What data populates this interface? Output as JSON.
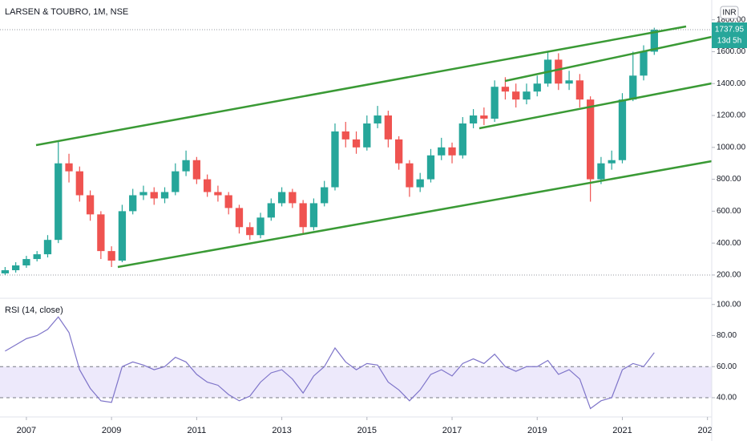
{
  "chart_data": [
    {
      "type": "candlestick",
      "title": "LARSEN & TOUBRO, 1M, NSE",
      "currency": "INR",
      "countdown": "13d 5h",
      "up_color": "#26a69a",
      "down_color": "#ef5350",
      "x": [
        2006.5,
        2006.75,
        2007,
        2007.25,
        2007.5,
        2007.75,
        2008,
        2008.25,
        2008.5,
        2008.75,
        2009,
        2009.25,
        2009.5,
        2009.75,
        2010,
        2010.25,
        2010.5,
        2010.75,
        2011,
        2011.25,
        2011.5,
        2011.75,
        2012,
        2012.25,
        2012.5,
        2012.75,
        2013,
        2013.25,
        2013.5,
        2013.75,
        2014,
        2014.25,
        2014.5,
        2014.75,
        2015,
        2015.25,
        2015.5,
        2015.75,
        2016,
        2016.25,
        2016.5,
        2016.75,
        2017,
        2017.25,
        2017.5,
        2017.75,
        2018,
        2018.25,
        2018.5,
        2018.75,
        2019,
        2019.25,
        2019.5,
        2019.75,
        2020,
        2020.25,
        2020.5,
        2020.75,
        2021,
        2021.25,
        2021.5,
        2021.75
      ],
      "open": [
        210,
        230,
        260,
        300,
        330,
        420,
        900,
        850,
        700,
        580,
        350,
        290,
        600,
        700,
        720,
        680,
        720,
        850,
        920,
        800,
        720,
        700,
        620,
        500,
        450,
        560,
        650,
        720,
        650,
        500,
        650,
        750,
        1100,
        1050,
        1000,
        1150,
        1200,
        1050,
        900,
        750,
        800,
        950,
        1000,
        950,
        1150,
        1200,
        1180,
        1380,
        1350,
        1300,
        1350,
        1400,
        1550,
        1400,
        1420,
        1300,
        800,
        900,
        920,
        1300,
        1450,
        1600
      ],
      "high": [
        250,
        280,
        320,
        350,
        450,
        1040,
        960,
        880,
        730,
        600,
        380,
        640,
        740,
        760,
        750,
        750,
        900,
        980,
        940,
        830,
        760,
        720,
        640,
        530,
        590,
        680,
        750,
        740,
        670,
        680,
        790,
        1150,
        1160,
        1100,
        1200,
        1260,
        1230,
        1070,
        920,
        840,
        990,
        1060,
        1030,
        1190,
        1240,
        1250,
        1420,
        1440,
        1400,
        1400,
        1450,
        1600,
        1590,
        1480,
        1460,
        1320,
        940,
        980,
        1340,
        1600,
        1640,
        1750
      ],
      "low": [
        200,
        215,
        245,
        285,
        310,
        400,
        780,
        660,
        540,
        300,
        250,
        280,
        580,
        670,
        640,
        650,
        700,
        820,
        770,
        690,
        660,
        580,
        460,
        420,
        430,
        540,
        630,
        620,
        460,
        480,
        630,
        730,
        1000,
        960,
        980,
        1120,
        1000,
        860,
        690,
        720,
        780,
        920,
        900,
        930,
        1120,
        1140,
        1160,
        1300,
        1250,
        1270,
        1320,
        1380,
        1360,
        1360,
        1250,
        660,
        770,
        860,
        900,
        1290,
        1420,
        1580
      ],
      "close": [
        230,
        260,
        300,
        330,
        420,
        900,
        850,
        700,
        580,
        350,
        290,
        600,
        700,
        720,
        680,
        720,
        850,
        920,
        800,
        720,
        700,
        620,
        500,
        450,
        560,
        650,
        720,
        650,
        500,
        650,
        750,
        1100,
        1050,
        1000,
        1150,
        1200,
        1050,
        900,
        750,
        800,
        950,
        1000,
        950,
        1150,
        1200,
        1180,
        1380,
        1350,
        1300,
        1350,
        1400,
        1550,
        1400,
        1420,
        1300,
        800,
        900,
        920,
        1300,
        1450,
        1600,
        1737.95
      ],
      "xlim": [
        2006.38,
        2023.1
      ],
      "xticks": [
        2007,
        2009,
        2011,
        2013,
        2015,
        2017,
        2019,
        2021,
        2023
      ],
      "ylim": [
        54,
        1924
      ],
      "yticks": [
        {
          "value": 200,
          "label": "200.00"
        },
        {
          "value": 400,
          "label": "400.00"
        },
        {
          "value": 600,
          "label": "600.00"
        },
        {
          "value": 800,
          "label": "800.00"
        },
        {
          "value": 1000,
          "label": "1000.00"
        },
        {
          "value": 1200,
          "label": "1200.00"
        },
        {
          "value": 1400,
          "label": "1400.00"
        },
        {
          "value": 1600,
          "label": "1600.00"
        },
        {
          "value": 1800,
          "label": "1800.00"
        }
      ]
    },
    {
      "type": "line",
      "title": "RSI (14, close)",
      "color": "#7e74c9",
      "band_color": "#ede9fb",
      "values": [
        70,
        74,
        78,
        80,
        84,
        92,
        82,
        58,
        46,
        38,
        37,
        60,
        63,
        61,
        58,
        60,
        66,
        63,
        55,
        50,
        48,
        42,
        38,
        41,
        50,
        56,
        58,
        52,
        43,
        54,
        60,
        72,
        63,
        58,
        62,
        61,
        50,
        45,
        38,
        45,
        55,
        58,
        54,
        62,
        65,
        62,
        68,
        60,
        57,
        60,
        60,
        64,
        55,
        58,
        52,
        33,
        38,
        40,
        58,
        62,
        60,
        69
      ],
      "ylim": [
        27.6,
        104
      ],
      "yticks": [
        {
          "value": 40,
          "label": "40.00"
        },
        {
          "value": 60,
          "label": "60.00"
        },
        {
          "value": 80,
          "label": "80.00"
        },
        {
          "value": 100,
          "label": "100.00"
        }
      ],
      "band": [
        40,
        60
      ]
    }
  ]
}
